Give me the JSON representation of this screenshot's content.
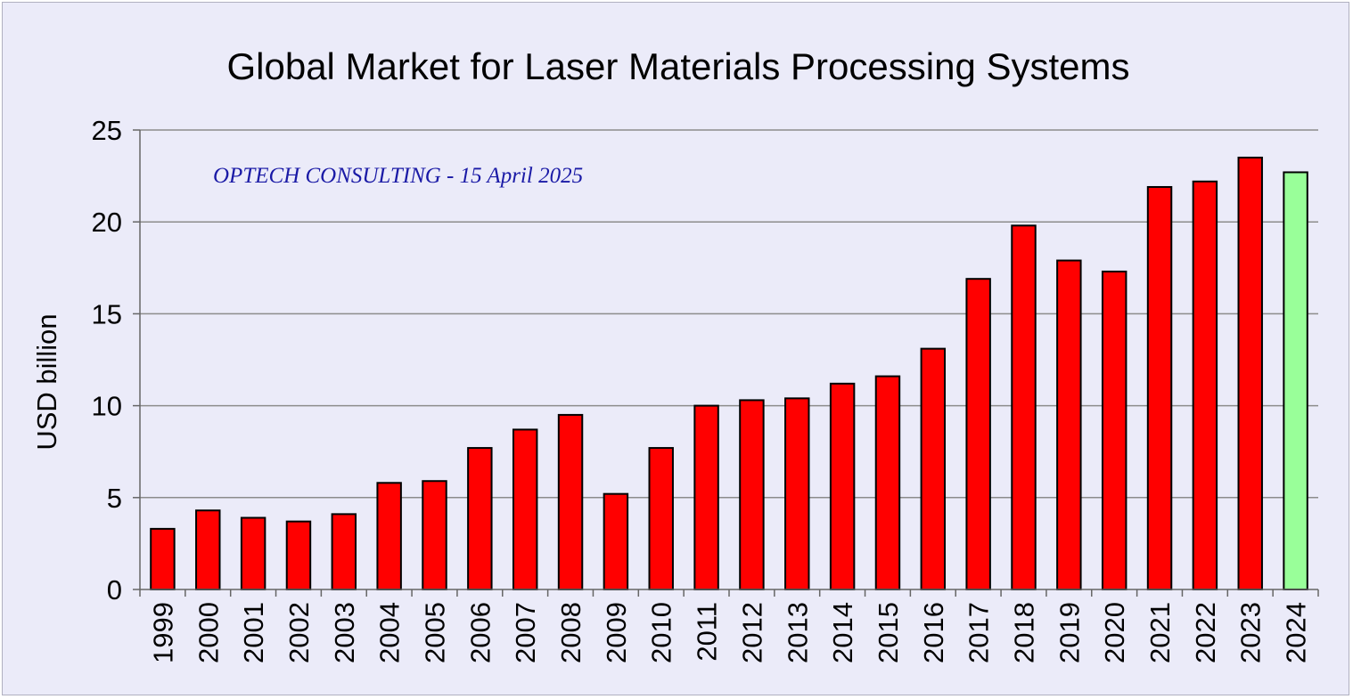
{
  "chart_data": {
    "type": "bar",
    "title": "Global Market for Laser Materials Processing Systems",
    "annotation": "OPTECH CONSULTING - 15 April 2025",
    "xlabel": "",
    "ylabel": "USD billion",
    "ylim": [
      0,
      25
    ],
    "yticks": [
      "0",
      "5",
      "10",
      "15",
      "20",
      "25"
    ],
    "grid": true,
    "categories": [
      "1999",
      "2000",
      "2001",
      "2002",
      "2003",
      "2004",
      "2005",
      "2006",
      "2007",
      "2008",
      "2009",
      "2010",
      "2011",
      "2012",
      "2013",
      "2014",
      "2015",
      "2016",
      "2017",
      "2018",
      "2019",
      "2020",
      "2021",
      "2022",
      "2023",
      "2024"
    ],
    "values": [
      3.3,
      4.3,
      3.9,
      3.7,
      4.1,
      5.8,
      5.9,
      7.7,
      8.7,
      9.5,
      5.2,
      7.7,
      10.0,
      10.3,
      10.4,
      11.2,
      11.6,
      13.1,
      16.9,
      19.8,
      17.9,
      17.3,
      21.9,
      22.2,
      23.5,
      22.7
    ],
    "colors": {
      "background": "#ebebf9",
      "bar": "#ff0000",
      "highlight_bar": "#99ff99",
      "bar_outline": "#000000",
      "grid": "#8c8c8c",
      "annotation": "#1a1aa6"
    },
    "highlight_category": "2024"
  }
}
